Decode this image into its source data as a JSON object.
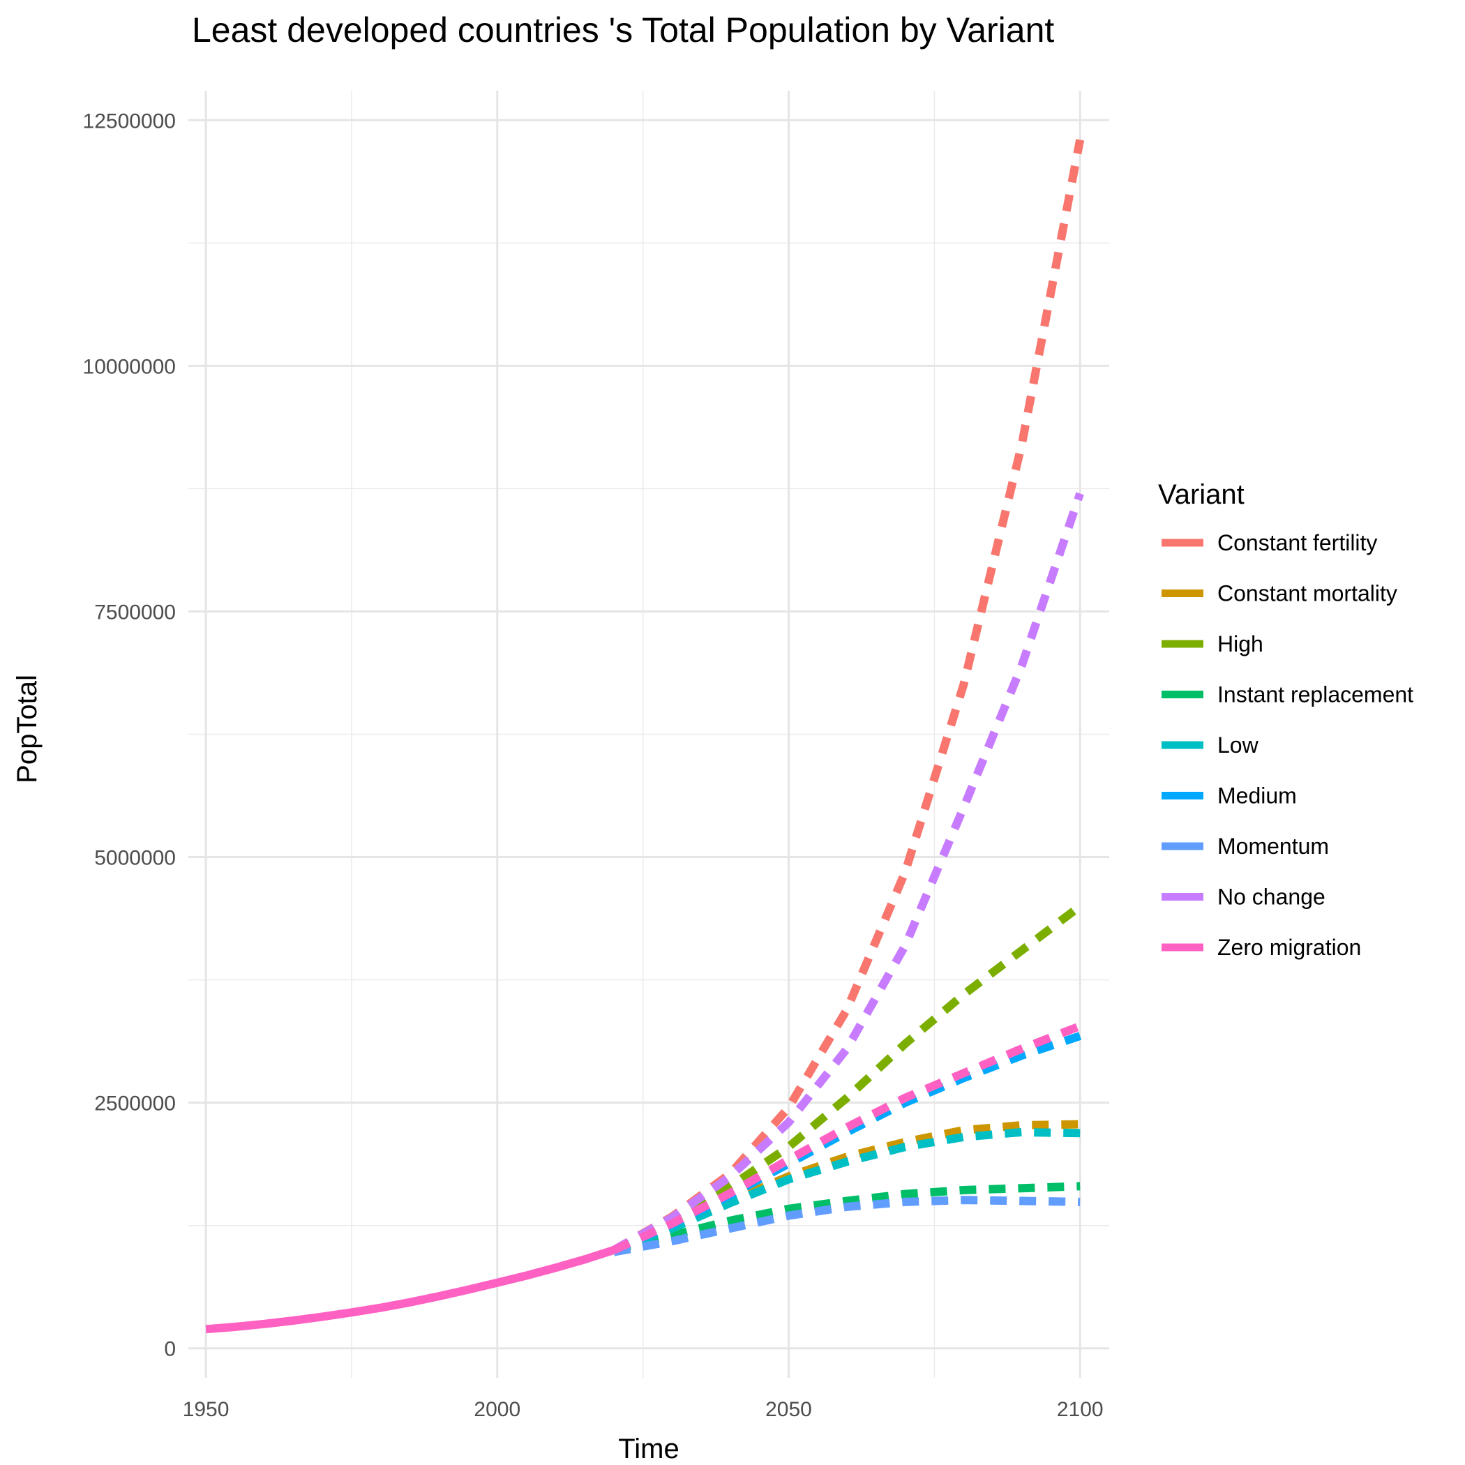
{
  "chart_data": {
    "type": "line",
    "title": "Least developed countries 's Total Population by Variant",
    "xlabel": "Time",
    "ylabel": "PopTotal",
    "xlim": [
      1947,
      2105
    ],
    "ylim": [
      -300000,
      12800000
    ],
    "x_ticks": [
      1950,
      2000,
      2050,
      2100
    ],
    "x_tick_labels": [
      "1950",
      "2000",
      "2050",
      "2100"
    ],
    "y_ticks": [
      0,
      2500000,
      5000000,
      7500000,
      10000000,
      12500000
    ],
    "y_tick_labels": [
      "0",
      "2500000",
      "5000000",
      "7500000",
      "10000000",
      "12500000"
    ],
    "grid": true,
    "legend": {
      "title": "Variant",
      "position": "right"
    },
    "historical": {
      "x": [
        1950,
        1955,
        1960,
        1965,
        1970,
        1975,
        1980,
        1985,
        1990,
        1995,
        2000,
        2005,
        2010,
        2015,
        2020
      ],
      "y": [
        195000,
        218000,
        248000,
        282000,
        322000,
        365000,
        413000,
        468000,
        530000,
        597000,
        668000,
        740000,
        820000,
        905000,
        1000000
      ]
    },
    "series": [
      {
        "name": "Constant fertility",
        "color": "#F8766D",
        "x": [
          2020,
          2030,
          2040,
          2050,
          2060,
          2070,
          2080,
          2090,
          2100
        ],
        "y": [
          1000000,
          1340000,
          1780000,
          2450000,
          3450000,
          4850000,
          6750000,
          9200000,
          12300000
        ]
      },
      {
        "name": "Constant mortality",
        "color": "#CD9600",
        "x": [
          2020,
          2030,
          2040,
          2050,
          2060,
          2070,
          2080,
          2090,
          2100
        ],
        "y": [
          1000000,
          1240000,
          1500000,
          1750000,
          1950000,
          2100000,
          2220000,
          2270000,
          2280000
        ]
      },
      {
        "name": "High",
        "color": "#7CAE00",
        "x": [
          2020,
          2030,
          2040,
          2050,
          2060,
          2070,
          2080,
          2090,
          2100
        ],
        "y": [
          1000000,
          1300000,
          1650000,
          2050000,
          2550000,
          3100000,
          3600000,
          4050000,
          4500000
        ]
      },
      {
        "name": "Instant replacement",
        "color": "#00BE67",
        "x": [
          2020,
          2030,
          2040,
          2050,
          2060,
          2070,
          2080,
          2090,
          2100
        ],
        "y": [
          1000000,
          1150000,
          1300000,
          1420000,
          1500000,
          1570000,
          1610000,
          1630000,
          1650000
        ]
      },
      {
        "name": "Low",
        "color": "#00BFC4",
        "x": [
          2020,
          2030,
          2040,
          2050,
          2060,
          2070,
          2080,
          2090,
          2100
        ],
        "y": [
          1000000,
          1220000,
          1480000,
          1720000,
          1900000,
          2050000,
          2150000,
          2200000,
          2190000
        ]
      },
      {
        "name": "Medium",
        "color": "#00A9FF",
        "x": [
          2020,
          2030,
          2040,
          2050,
          2060,
          2070,
          2080,
          2090,
          2100
        ],
        "y": [
          1000000,
          1260000,
          1560000,
          1880000,
          2200000,
          2500000,
          2750000,
          2980000,
          3180000
        ]
      },
      {
        "name": "Momentum",
        "color": "#619CFF",
        "x": [
          2020,
          2030,
          2040,
          2050,
          2060,
          2070,
          2080,
          2090,
          2100
        ],
        "y": [
          980000,
          1090000,
          1220000,
          1350000,
          1440000,
          1490000,
          1510000,
          1500000,
          1490000
        ]
      },
      {
        "name": "No change",
        "color": "#C77CFF",
        "x": [
          2020,
          2030,
          2040,
          2050,
          2060,
          2070,
          2080,
          2090,
          2100
        ],
        "y": [
          1000000,
          1330000,
          1750000,
          2300000,
          3050000,
          4100000,
          5500000,
          6950000,
          8700000
        ]
      },
      {
        "name": "Zero migration",
        "color": "#FF61C3",
        "x": [
          2020,
          2030,
          2040,
          2050,
          2060,
          2070,
          2080,
          2090,
          2100
        ],
        "y": [
          1000000,
          1270000,
          1580000,
          1920000,
          2250000,
          2550000,
          2800000,
          3050000,
          3280000
        ]
      }
    ]
  }
}
